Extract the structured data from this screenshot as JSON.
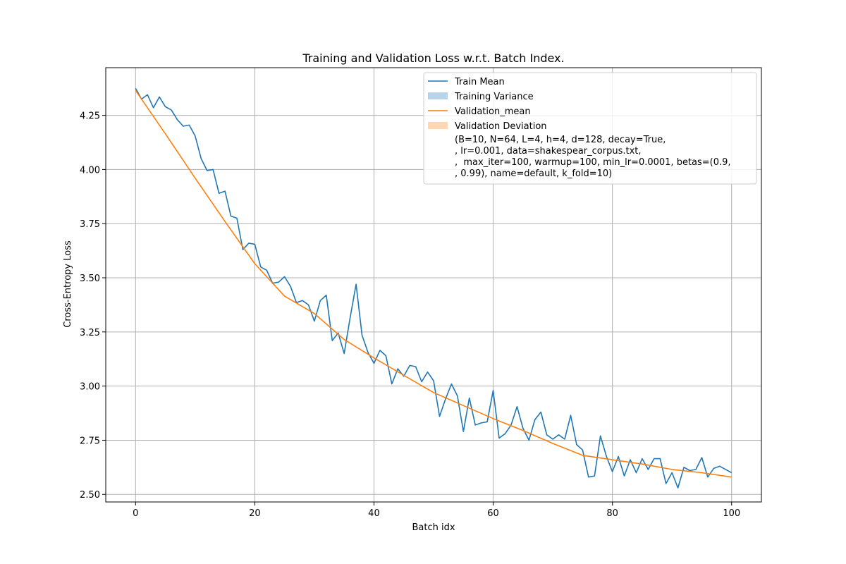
{
  "chart_data": {
    "type": "line",
    "title": "Training and Validation Loss w.r.t. Batch Index.",
    "xlabel": "Batch idx",
    "ylabel": "Cross-Entropy Loss",
    "xlim": [
      -5,
      105
    ],
    "ylim": [
      2.465,
      4.47
    ],
    "xticks": [
      0,
      20,
      40,
      60,
      80,
      100
    ],
    "yticks": [
      2.5,
      2.75,
      3.0,
      3.25,
      3.5,
      3.75,
      4.0,
      4.25
    ],
    "ytick_labels": [
      "2.50",
      "2.75",
      "3.00",
      "3.25",
      "3.50",
      "3.75",
      "4.00",
      "4.25"
    ],
    "grid": true,
    "legend_position": "top-right",
    "series": [
      {
        "name": "Train Mean",
        "color": "#1f77b4",
        "x": [
          0,
          1,
          2,
          3,
          4,
          5,
          6,
          7,
          8,
          9,
          10,
          11,
          12,
          13,
          14,
          15,
          16,
          17,
          18,
          19,
          20,
          21,
          22,
          23,
          24,
          25,
          26,
          27,
          28,
          29,
          30,
          31,
          32,
          33,
          34,
          35,
          36,
          37,
          38,
          39,
          40,
          41,
          42,
          43,
          44,
          45,
          46,
          47,
          48,
          49,
          50,
          51,
          52,
          53,
          54,
          55,
          56,
          57,
          58,
          59,
          60,
          61,
          62,
          63,
          64,
          65,
          66,
          67,
          68,
          69,
          70,
          71,
          72,
          73,
          74,
          75,
          76,
          77,
          78,
          79,
          80,
          81,
          82,
          83,
          84,
          85,
          86,
          87,
          88,
          89,
          90,
          91,
          92,
          93,
          94,
          95,
          96,
          97,
          98,
          99,
          100
        ],
        "y": [
          4.375,
          4.325,
          4.345,
          4.285,
          4.335,
          4.29,
          4.275,
          4.23,
          4.2,
          4.205,
          4.155,
          4.05,
          3.995,
          4.0,
          3.89,
          3.9,
          3.785,
          3.775,
          3.63,
          3.66,
          3.655,
          3.55,
          3.535,
          3.475,
          3.48,
          3.505,
          3.46,
          3.385,
          3.395,
          3.375,
          3.3,
          3.395,
          3.42,
          3.21,
          3.245,
          3.15,
          3.315,
          3.47,
          3.235,
          3.155,
          3.105,
          3.165,
          3.14,
          3.01,
          3.08,
          3.045,
          3.095,
          3.09,
          3.02,
          3.065,
          3.025,
          2.86,
          2.94,
          3.01,
          2.955,
          2.79,
          2.945,
          2.82,
          2.83,
          2.835,
          2.98,
          2.76,
          2.78,
          2.82,
          2.905,
          2.805,
          2.75,
          2.845,
          2.88,
          2.775,
          2.755,
          2.775,
          2.755,
          2.865,
          2.73,
          2.705,
          2.58,
          2.585,
          2.77,
          2.675,
          2.605,
          2.675,
          2.585,
          2.66,
          2.6,
          2.665,
          2.615,
          2.665,
          2.665,
          2.55,
          2.6,
          2.53,
          2.625,
          2.61,
          2.615,
          2.67,
          2.58,
          2.62,
          2.63,
          2.615,
          2.6
        ]
      },
      {
        "name": "Validation_mean",
        "color": "#ff7f0e",
        "x": [
          0,
          5,
          10,
          15,
          20,
          25,
          30,
          35,
          40,
          45,
          50,
          55,
          60,
          65,
          70,
          75,
          80,
          85,
          90,
          95,
          100
        ],
        "y": [
          4.365,
          4.165,
          3.96,
          3.76,
          3.565,
          3.415,
          3.335,
          3.215,
          3.13,
          3.05,
          2.97,
          2.91,
          2.85,
          2.795,
          2.735,
          2.68,
          2.66,
          2.64,
          2.615,
          2.6,
          2.58
        ]
      }
    ],
    "legend": {
      "entries": [
        {
          "label": "Train Mean",
          "kind": "line",
          "color": "#1f77b4"
        },
        {
          "label": "Training Variance",
          "kind": "patch",
          "color": "#b6d4ea"
        },
        {
          "label": "Validation_mean",
          "kind": "line",
          "color": "#ff7f0e"
        },
        {
          "label": "Validation Deviation",
          "kind": "patch",
          "color": "#ffd7b3"
        }
      ],
      "note_lines": [
        "(B=10, N=64, L=4, h=4, d=128, decay=True,",
        ", lr=0.001, data=shakespear_corpus.txt,",
        ",  max_iter=100, warmup=100, min_lr=0.0001, betas=(0.9,",
        ", 0.99), name=default, k_fold=10)"
      ]
    }
  }
}
